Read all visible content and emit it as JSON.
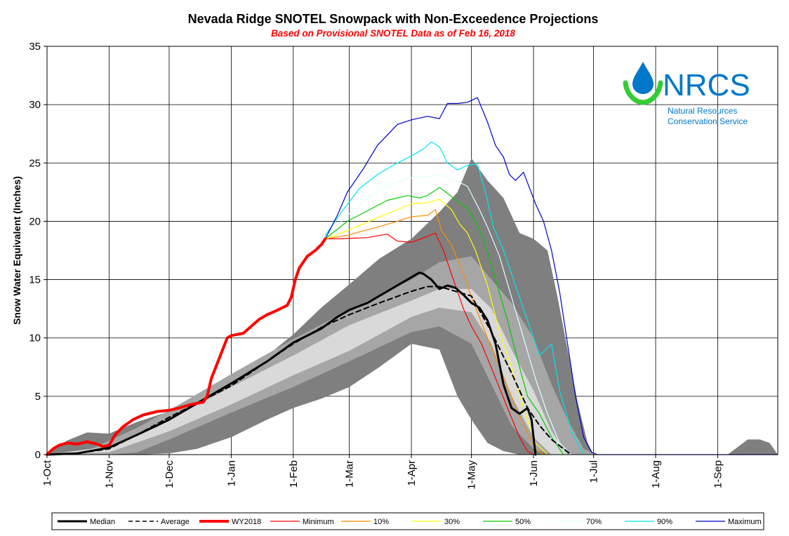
{
  "chart_data": {
    "type": "line",
    "title": "Nevada Ridge SNOTEL Snowpack with Non-Exceedence Projections",
    "subtitle": "Based on Provisional SNOTEL Data as of Feb 16, 2018",
    "ylabel": "Snow Water Equivalent (Inches)",
    "xlabel": "",
    "ylim": [
      0,
      35
    ],
    "yticks": [
      0,
      5,
      10,
      15,
      20,
      25,
      30,
      35
    ],
    "xlim": [
      0,
      365
    ],
    "xticks": [
      {
        "day": 0,
        "label": "1-Oct"
      },
      {
        "day": 31,
        "label": "1-Nov"
      },
      {
        "day": 61,
        "label": "1-Dec"
      },
      {
        "day": 92,
        "label": "1-Jan"
      },
      {
        "day": 123,
        "label": "1-Feb"
      },
      {
        "day": 151,
        "label": "1-Mar"
      },
      {
        "day": 182,
        "label": "1-Apr"
      },
      {
        "day": 212,
        "label": "1-May"
      },
      {
        "day": 243,
        "label": "1-Jun"
      },
      {
        "day": 273,
        "label": "1-Jul"
      },
      {
        "day": 304,
        "label": "1-Aug"
      },
      {
        "day": 335,
        "label": "1-Sep"
      }
    ],
    "grid": true,
    "legend_position": "bottom",
    "bands": [
      {
        "name": "max-min",
        "color": "#7f7f7f",
        "x": [
          0,
          10,
          20,
          31,
          45,
          61,
          75,
          92,
          110,
          123,
          137,
          151,
          166,
          182,
          196,
          205,
          212,
          220,
          228,
          236,
          243,
          250,
          255,
          260,
          265,
          270,
          273,
          280,
          300,
          340,
          350,
          356,
          361,
          365
        ],
        "upper": [
          0,
          1.2,
          1.9,
          1.8,
          2.8,
          3.7,
          4.7,
          6.0,
          8.5,
          10.3,
          12.6,
          14.6,
          16.8,
          18.5,
          20.8,
          22.5,
          25.4,
          23.5,
          22.0,
          19.0,
          18.5,
          17.5,
          13.5,
          9.0,
          4.5,
          1.0,
          0,
          0,
          0,
          0,
          1.3,
          1.3,
          1.0,
          0
        ],
        "lower": [
          0,
          0,
          0,
          0,
          0,
          0.1,
          0.5,
          1.5,
          3.0,
          4.0,
          4.8,
          5.8,
          7.5,
          9.5,
          9.0,
          5.0,
          3.0,
          1.0,
          0.3,
          0,
          0,
          0,
          0,
          0,
          0,
          0,
          0,
          0,
          0,
          0,
          0,
          0,
          0,
          0
        ]
      },
      {
        "name": "p10-p90",
        "color": "#a6a6a6",
        "x": [
          0,
          20,
          31,
          45,
          61,
          92,
          123,
          151,
          182,
          196,
          212,
          222,
          232,
          243,
          252,
          260,
          268,
          275
        ],
        "upper": [
          0,
          0.3,
          1.2,
          2.3,
          3.8,
          6.9,
          9.9,
          12.4,
          15.0,
          16.5,
          17.0,
          15.0,
          13.0,
          10.0,
          6.0,
          3.0,
          0.5,
          0
        ],
        "lower": [
          0,
          0,
          0,
          0.2,
          1.3,
          3.6,
          5.8,
          8.0,
          10.5,
          11.0,
          9.5,
          6.0,
          2.5,
          0.5,
          0,
          0,
          0,
          0
        ]
      },
      {
        "name": "p30-p70",
        "color": "#d9d9d9",
        "x": [
          0,
          31,
          61,
          92,
          123,
          151,
          182,
          196,
          212,
          222,
          232,
          243,
          252,
          260
        ],
        "upper": [
          0,
          0.7,
          3.0,
          5.8,
          8.5,
          11.1,
          13.2,
          14.2,
          14.2,
          12.5,
          9.0,
          5.5,
          2.0,
          0
        ],
        "lower": [
          0,
          0.2,
          2.0,
          4.3,
          6.8,
          8.9,
          11.8,
          12.6,
          12.2,
          9.5,
          5.0,
          1.5,
          0,
          0
        ]
      }
    ],
    "series": [
      {
        "name": "Minimum",
        "color": "#ff0000",
        "width": 1.2,
        "dash": "",
        "x": [
          139,
          145,
          160,
          170,
          175,
          182,
          190,
          194,
          198,
          204,
          208,
          212,
          217,
          223,
          230,
          236,
          240,
          243
        ],
        "y": [
          18.5,
          18.5,
          18.6,
          18.9,
          18.3,
          18.2,
          18.7,
          19.0,
          17.5,
          14.5,
          12.5,
          11.0,
          9.5,
          7.0,
          4.0,
          1.5,
          0.3,
          0
        ]
      },
      {
        "name": "10%",
        "color": "#ff8c00",
        "width": 1.2,
        "dash": "",
        "x": [
          139,
          150,
          165,
          175,
          182,
          190,
          194,
          197,
          202,
          208,
          212,
          220,
          226,
          232,
          238,
          244,
          248
        ],
        "y": [
          18.5,
          18.8,
          19.5,
          20.0,
          20.4,
          20.5,
          21.0,
          19.2,
          18.0,
          15.5,
          13.5,
          10.0,
          7.5,
          5.0,
          2.5,
          0.5,
          0
        ]
      },
      {
        "name": "30%",
        "color": "#ffff00",
        "width": 1.2,
        "dash": "",
        "x": [
          139,
          150,
          165,
          175,
          182,
          190,
          196,
          202,
          206,
          210,
          214,
          220,
          226,
          232,
          238,
          244,
          250
        ],
        "y": [
          18.5,
          19.2,
          20.3,
          21.0,
          21.5,
          21.6,
          21.9,
          21.0,
          19.8,
          19.0,
          17.5,
          14.5,
          10.5,
          7.5,
          4.0,
          1.0,
          0
        ]
      },
      {
        "name": "50%",
        "color": "#00cc00",
        "width": 1.2,
        "dash": "",
        "x": [
          139,
          150,
          160,
          170,
          180,
          186,
          190,
          196,
          200,
          205,
          210,
          214,
          218,
          224,
          230,
          236,
          240,
          246,
          252,
          258
        ],
        "y": [
          18.5,
          20.0,
          20.9,
          21.8,
          22.2,
          22.0,
          22.2,
          22.9,
          22.4,
          21.7,
          21.1,
          20.0,
          18.5,
          15.0,
          11.5,
          7.5,
          5.0,
          3.5,
          1.5,
          0
        ]
      },
      {
        "name": "70%",
        "color": "#e0ffff",
        "width": 1.2,
        "dash": "",
        "x": [
          139,
          150,
          160,
          170,
          180,
          190,
          196,
          204,
          210,
          216,
          220,
          226,
          232,
          238,
          244,
          250,
          256,
          262
        ],
        "y": [
          18.7,
          20.5,
          22.0,
          23.0,
          23.7,
          23.8,
          24.0,
          23.5,
          23.0,
          21.0,
          19.5,
          17.0,
          13.5,
          10.0,
          6.5,
          3.5,
          1.0,
          0
        ]
      },
      {
        "name": "90%",
        "color": "#00e5ee",
        "width": 1.2,
        "dash": "",
        "x": [
          139,
          148,
          156,
          165,
          175,
          182,
          188,
          192,
          196,
          200,
          205,
          210,
          215,
          219,
          223,
          228,
          234,
          240,
          246,
          252,
          256,
          262,
          268
        ],
        "y": [
          18.8,
          21.0,
          22.8,
          24.0,
          25.0,
          25.6,
          26.2,
          26.8,
          26.4,
          25.0,
          24.4,
          24.8,
          24.9,
          22.5,
          19.5,
          17.5,
          14.5,
          11.5,
          8.5,
          9.5,
          5.5,
          2.0,
          0
        ]
      },
      {
        "name": "Maximum",
        "color": "#0000cd",
        "width": 1.2,
        "dash": "",
        "x": [
          139,
          145,
          150,
          158,
          165,
          175,
          182,
          190,
          196,
          200,
          205,
          210,
          215,
          220,
          224,
          228,
          231,
          234,
          238,
          244,
          248,
          252,
          256,
          260,
          264,
          268,
          272,
          275,
          365
        ],
        "y": [
          18.5,
          20.5,
          22.5,
          24.5,
          26.5,
          28.3,
          28.7,
          29.0,
          28.8,
          30.1,
          30.1,
          30.2,
          30.6,
          28.5,
          26.5,
          25.5,
          24.0,
          23.5,
          24.2,
          21.5,
          20.0,
          17.5,
          14.0,
          9.5,
          5.0,
          1.5,
          0.2,
          0,
          0
        ]
      },
      {
        "name": "Average",
        "color": "#000000",
        "width": 2,
        "dash": "7,5",
        "x": [
          0,
          15,
          31,
          45,
          61,
          75,
          92,
          110,
          123,
          137,
          151,
          166,
          182,
          190,
          196,
          212,
          222,
          232,
          240,
          246,
          252,
          258,
          262
        ],
        "y": [
          0,
          0.1,
          0.5,
          1.7,
          3.2,
          4.4,
          5.9,
          8.0,
          9.5,
          10.9,
          12.0,
          13.0,
          14.0,
          14.4,
          14.4,
          13.6,
          10.5,
          7.0,
          4.0,
          2.5,
          1.3,
          0.5,
          0
        ]
      },
      {
        "name": "Median",
        "color": "#000000",
        "width": 3,
        "dash": "",
        "x": [
          0,
          15,
          31,
          45,
          55,
          61,
          75,
          92,
          110,
          123,
          137,
          145,
          151,
          160,
          170,
          182,
          186,
          188,
          192,
          196,
          200,
          204,
          208,
          212,
          216,
          220,
          224,
          228,
          232,
          236,
          240,
          242,
          244
        ],
        "y": [
          0,
          0.1,
          0.6,
          1.7,
          2.5,
          3.0,
          4.4,
          6.1,
          8.0,
          9.6,
          10.8,
          11.8,
          12.4,
          13.0,
          14.0,
          15.2,
          15.6,
          15.5,
          15.0,
          14.2,
          14.5,
          14.3,
          13.7,
          13.0,
          12.6,
          11.5,
          9.5,
          6.0,
          4.0,
          3.5,
          4.0,
          3.0,
          0
        ]
      },
      {
        "name": "WY2018",
        "color": "#ff0000",
        "width": 4,
        "dash": "",
        "x": [
          0,
          3,
          6,
          10,
          15,
          20,
          25,
          28,
          31,
          34,
          38,
          43,
          48,
          55,
          61,
          66,
          72,
          78,
          80,
          82,
          90,
          92,
          95,
          98,
          102,
          106,
          110,
          114,
          120,
          122,
          124,
          126,
          130,
          134,
          137,
          139
        ],
        "y": [
          0,
          0.5,
          0.8,
          1.0,
          0.9,
          1.1,
          0.9,
          0.7,
          0.8,
          1.7,
          2.4,
          3.0,
          3.4,
          3.7,
          3.8,
          4.0,
          4.3,
          4.5,
          5.0,
          6.5,
          10.0,
          10.2,
          10.3,
          10.4,
          11.0,
          11.6,
          12.0,
          12.3,
          12.8,
          13.5,
          15.0,
          16.0,
          17.0,
          17.5,
          18.0,
          18.5
        ]
      }
    ]
  },
  "legend": {
    "items": [
      {
        "label": "Median",
        "color": "#000000",
        "width": 3,
        "dash": ""
      },
      {
        "label": "Average",
        "color": "#000000",
        "width": 1.5,
        "dash": "6,4"
      },
      {
        "label": "WY2018",
        "color": "#ff0000",
        "width": 4,
        "dash": ""
      },
      {
        "label": "Minimum",
        "color": "#ff0000",
        "width": 1.2,
        "dash": ""
      },
      {
        "label": "10%",
        "color": "#ff8c00",
        "width": 1.2,
        "dash": ""
      },
      {
        "label": "30%",
        "color": "#ffff00",
        "width": 1.2,
        "dash": ""
      },
      {
        "label": "50%",
        "color": "#00cc00",
        "width": 1.2,
        "dash": ""
      },
      {
        "label": "70%",
        "color": "#e0ffff",
        "width": 1.2,
        "dash": ""
      },
      {
        "label": "90%",
        "color": "#00e5ee",
        "width": 1.2,
        "dash": ""
      },
      {
        "label": "Maximum",
        "color": "#0000cd",
        "width": 1.2,
        "dash": ""
      }
    ]
  },
  "logo": {
    "name": "NRCS",
    "line1": "Natural Resources",
    "line2": "Conservation Service",
    "color": "#0077c8",
    "accent": "#33cc33"
  }
}
